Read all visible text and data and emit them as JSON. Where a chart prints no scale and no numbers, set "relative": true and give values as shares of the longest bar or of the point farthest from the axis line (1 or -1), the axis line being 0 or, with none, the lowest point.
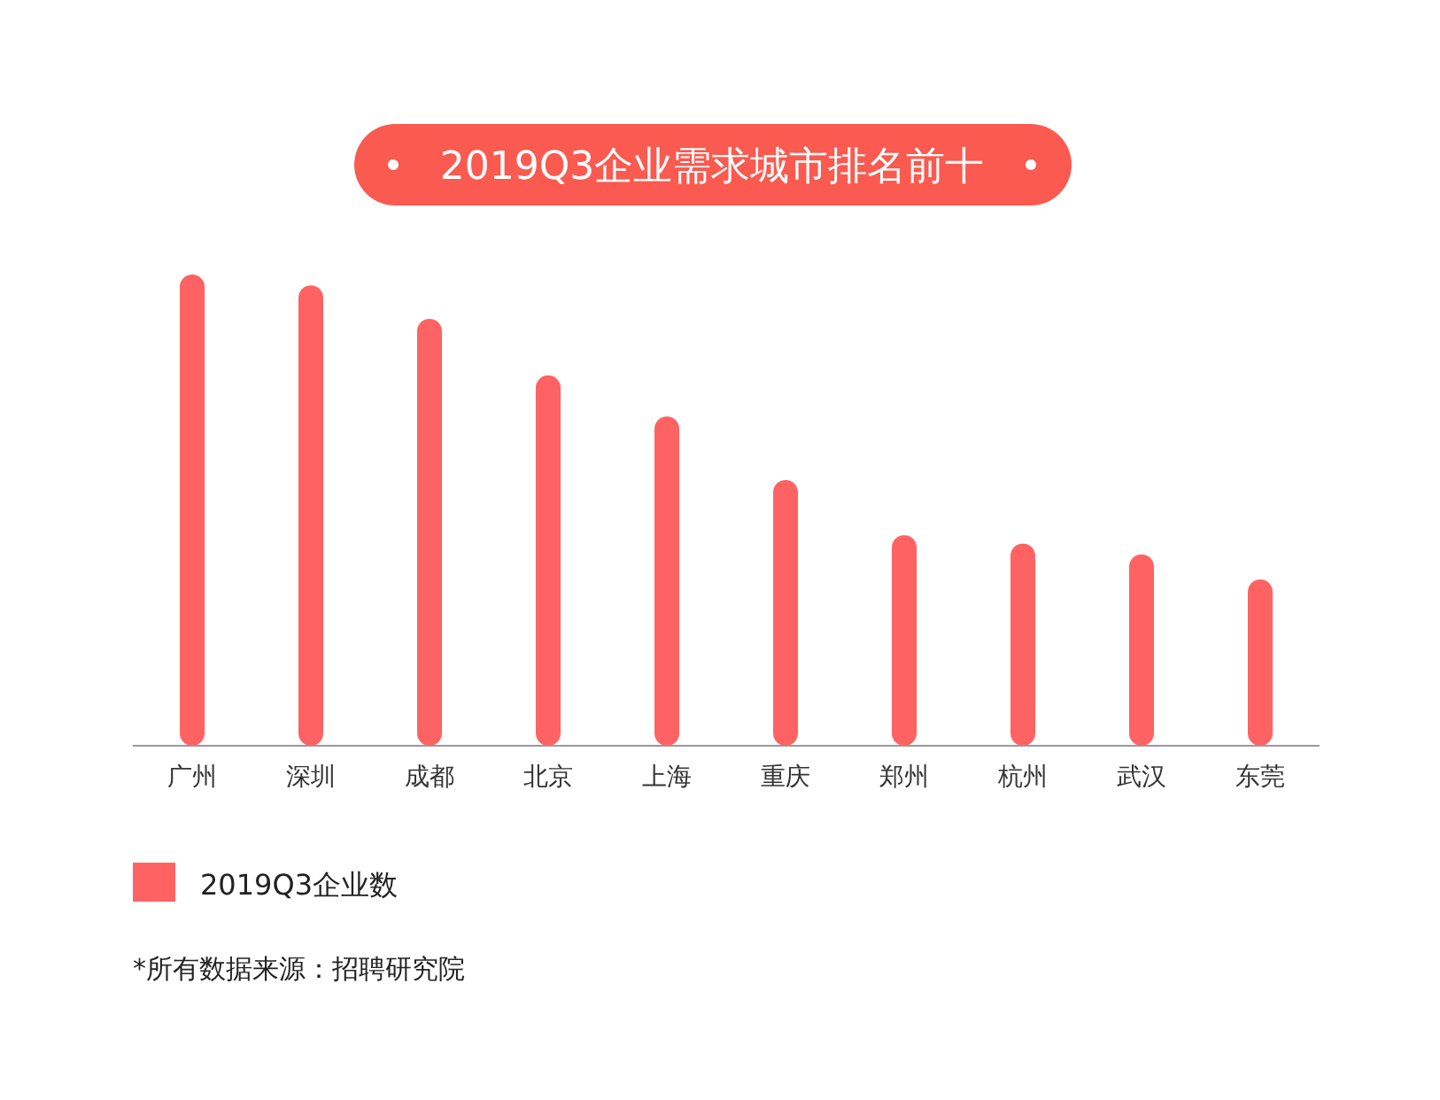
{
  "chart_data": {
    "type": "bar",
    "title": "2019Q3企业需求城市排名前十",
    "categories": [
      "广州",
      "深圳",
      "成都",
      "北京",
      "上海",
      "重庆",
      "郑州",
      "杭州",
      "武汉",
      "东莞"
    ],
    "series": [
      {
        "name": "2019Q3企业数",
        "color": "#ff6262",
        "values": [
          1,
          0.977,
          0.906,
          0.786,
          0.699,
          0.564,
          0.447,
          0.429,
          0.406,
          0.353
        ]
      }
    ],
    "relative": true,
    "legend": "bottom left",
    "annotations": [
      "*所有数据来源：招聘研究院"
    ]
  }
}
